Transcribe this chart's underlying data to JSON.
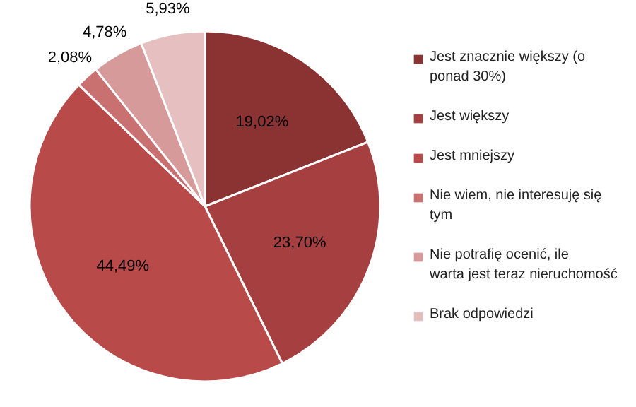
{
  "chart_data": {
    "type": "pie",
    "categories": [
      "Jest znacznie większy (o ponad 30%)",
      "Jest większy",
      "Jest mniejszy",
      "Nie wiem, nie interesuję się tym",
      "Nie potrafię ocenić, ile warta jest teraz nieruchomość",
      "Brak odpowiedzi"
    ],
    "values": [
      19.02,
      23.7,
      44.49,
      2.08,
      4.78,
      5.93
    ],
    "value_labels": [
      "19,02%",
      "23,70%",
      "44,49%",
      "2,08%",
      "4,78%",
      "5,93%"
    ],
    "colors": [
      "#8b3333",
      "#a64040",
      "#b84a4a",
      "#c97070",
      "#d69a9a",
      "#e6c0c0"
    ],
    "legend": "right"
  }
}
